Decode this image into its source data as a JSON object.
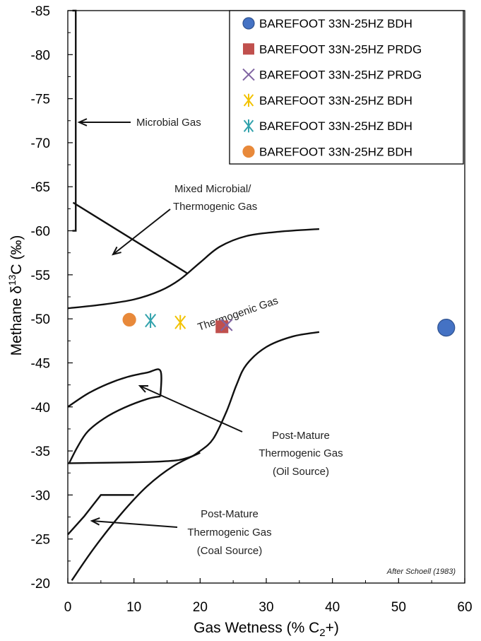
{
  "chart_data": {
    "type": "scatter",
    "xlabel": "Gas Wetness (% C",
    "xlabel_sub": "2",
    "xlabel_end": "+)",
    "ylabel": "Methane  δ",
    "ylabel_sup": "13",
    "ylabel_end": "C (‰)",
    "xlim": [
      0,
      60
    ],
    "ylim": [
      -20,
      -85
    ],
    "y_axis_reversed": true,
    "grid": false,
    "legend_position": "top-right",
    "x_ticks": [
      "0",
      "10",
      "20",
      "30",
      "40",
      "50",
      "60"
    ],
    "y_ticks": [
      "-85",
      "-80",
      "-75",
      "-70",
      "-65",
      "-60",
      "-55",
      "-50",
      "-45",
      "-40",
      "-35",
      "-30",
      "-25",
      "-20"
    ],
    "series": [
      {
        "name": "BAREFOOT 33N-25HZ BDH",
        "marker": "circle",
        "color": "#4472C4",
        "x": [
          57.2
        ],
        "y": [
          -49.0
        ]
      },
      {
        "name": "BAREFOOT 33N-25HZ PRDG",
        "marker": "square",
        "color": "#C0504D",
        "x": [
          23.3
        ],
        "y": [
          -49.1
        ]
      },
      {
        "name": "BAREFOOT 33N-25HZ PRDG",
        "marker": "x",
        "color": "#8064A2",
        "x": [
          24.0
        ],
        "y": [
          -49.3
        ]
      },
      {
        "name": "BAREFOOT 33N-25HZ BDH",
        "marker": "star",
        "color": "#F2C200",
        "x": [
          17.0
        ],
        "y": [
          -49.6
        ]
      },
      {
        "name": "BAREFOOT 33N-25HZ BDH",
        "marker": "star",
        "color": "#31A2AC",
        "x": [
          12.5
        ],
        "y": [
          -49.8
        ]
      },
      {
        "name": "BAREFOOT 33N-25HZ BDH",
        "marker": "circle",
        "color": "#E8893A",
        "x": [
          9.3
        ],
        "y": [
          -49.9
        ]
      }
    ],
    "annotations": {
      "microbial": "Microbial Gas",
      "mixed_1": "Mixed Microbial/",
      "mixed_2": "Thermogenic Gas",
      "thermogenic": "Thermogenic Gas",
      "oil_1": "Post-Mature",
      "oil_2": "Thermogenic Gas",
      "oil_3": "(Oil Source)",
      "coal_1": "Post-Mature",
      "coal_2": "Thermogenic Gas",
      "coal_3": "(Coal Source)",
      "credit": "After Schoell (1983)"
    },
    "field_boundaries": [
      {
        "name": "microbial",
        "points": [
          [
            0.7,
            -85
          ],
          [
            1.2,
            -85
          ],
          [
            1.2,
            -60
          ],
          [
            0.7,
            -60
          ]
        ]
      },
      {
        "name": "mixed-divider",
        "points": [
          [
            0.8,
            -63.2
          ],
          [
            18,
            -55.2
          ]
        ]
      },
      {
        "name": "thermo-upper",
        "points": [
          [
            0,
            -51.2
          ],
          [
            5,
            -51.6
          ],
          [
            10,
            -52.2
          ],
          [
            14,
            -53.2
          ],
          [
            17,
            -54.5
          ],
          [
            20,
            -56.4
          ],
          [
            23,
            -58.2
          ],
          [
            27,
            -59.4
          ],
          [
            32,
            -59.9
          ],
          [
            38,
            -60.2
          ]
        ]
      },
      {
        "name": "thermo-lower",
        "points": [
          [
            0,
            -33.6
          ],
          [
            14,
            -33.8
          ],
          [
            18,
            -34.2
          ],
          [
            20,
            -35.0
          ],
          [
            22,
            -36.4
          ],
          [
            24,
            -39.5
          ],
          [
            25.5,
            -42.5
          ],
          [
            27,
            -44.8
          ],
          [
            30,
            -46.8
          ],
          [
            34,
            -48.0
          ],
          [
            38,
            -48.5
          ]
        ]
      },
      {
        "name": "oil-upper",
        "points": [
          [
            0,
            -40
          ],
          [
            3,
            -41.5
          ],
          [
            6,
            -42.6
          ],
          [
            9,
            -43.4
          ],
          [
            12,
            -43.9
          ],
          [
            14,
            -44.1
          ],
          [
            14,
            -41.2
          ]
        ]
      },
      {
        "name": "oil-lower",
        "points": [
          [
            0.2,
            -33.6
          ],
          [
            1.5,
            -35.5
          ],
          [
            3,
            -37.2
          ],
          [
            5.5,
            -38.7
          ],
          [
            8.5,
            -39.9
          ],
          [
            12,
            -40.9
          ],
          [
            14,
            -41.2
          ]
        ]
      },
      {
        "name": "coal-upper",
        "points": [
          [
            0,
            -25.5
          ],
          [
            2.5,
            -27.6
          ],
          [
            5,
            -30
          ],
          [
            10,
            -30
          ]
        ]
      },
      {
        "name": "coal-lower",
        "points": [
          [
            0.6,
            -20.3
          ],
          [
            4,
            -24
          ],
          [
            8,
            -27.8
          ],
          [
            12,
            -31
          ],
          [
            16,
            -33.3
          ],
          [
            20,
            -34.8
          ]
        ]
      }
    ]
  }
}
